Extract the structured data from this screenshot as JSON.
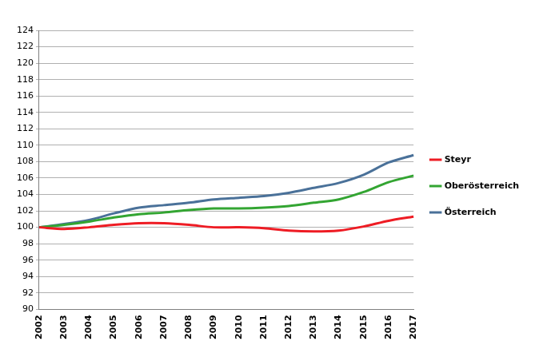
{
  "chart_data": {
    "type": "line",
    "categories": [
      "2002",
      "2003",
      "2004",
      "2005",
      "2006",
      "2007",
      "2008",
      "2009",
      "2010",
      "2011",
      "2012",
      "2013",
      "2014",
      "2015",
      "2016",
      "2017"
    ],
    "series": [
      {
        "name": "Steyr",
        "color": "#ee1c24",
        "values": [
          100,
          99.8,
          100.0,
          100.3,
          100.5,
          100.5,
          100.3,
          100.0,
          100.0,
          99.9,
          99.6,
          99.5,
          99.6,
          100.1,
          100.8,
          101.3
        ]
      },
      {
        "name": "Oberösterreich",
        "color": "#33a532",
        "values": [
          100,
          100.3,
          100.7,
          101.2,
          101.6,
          101.8,
          102.1,
          102.3,
          102.3,
          102.4,
          102.6,
          103.0,
          103.4,
          104.3,
          105.5,
          106.3
        ]
      },
      {
        "name": "Österreich",
        "color": "#4a7199",
        "values": [
          100,
          100.4,
          100.9,
          101.7,
          102.4,
          102.7,
          103.0,
          103.4,
          103.6,
          103.8,
          104.2,
          104.8,
          105.4,
          106.4,
          107.9,
          108.8
        ]
      }
    ],
    "ylim": [
      90,
      124
    ],
    "yticks": [
      90,
      92,
      94,
      96,
      98,
      100,
      102,
      104,
      106,
      108,
      110,
      112,
      114,
      116,
      118,
      120,
      122,
      124
    ],
    "grid": true,
    "legend": "right"
  }
}
